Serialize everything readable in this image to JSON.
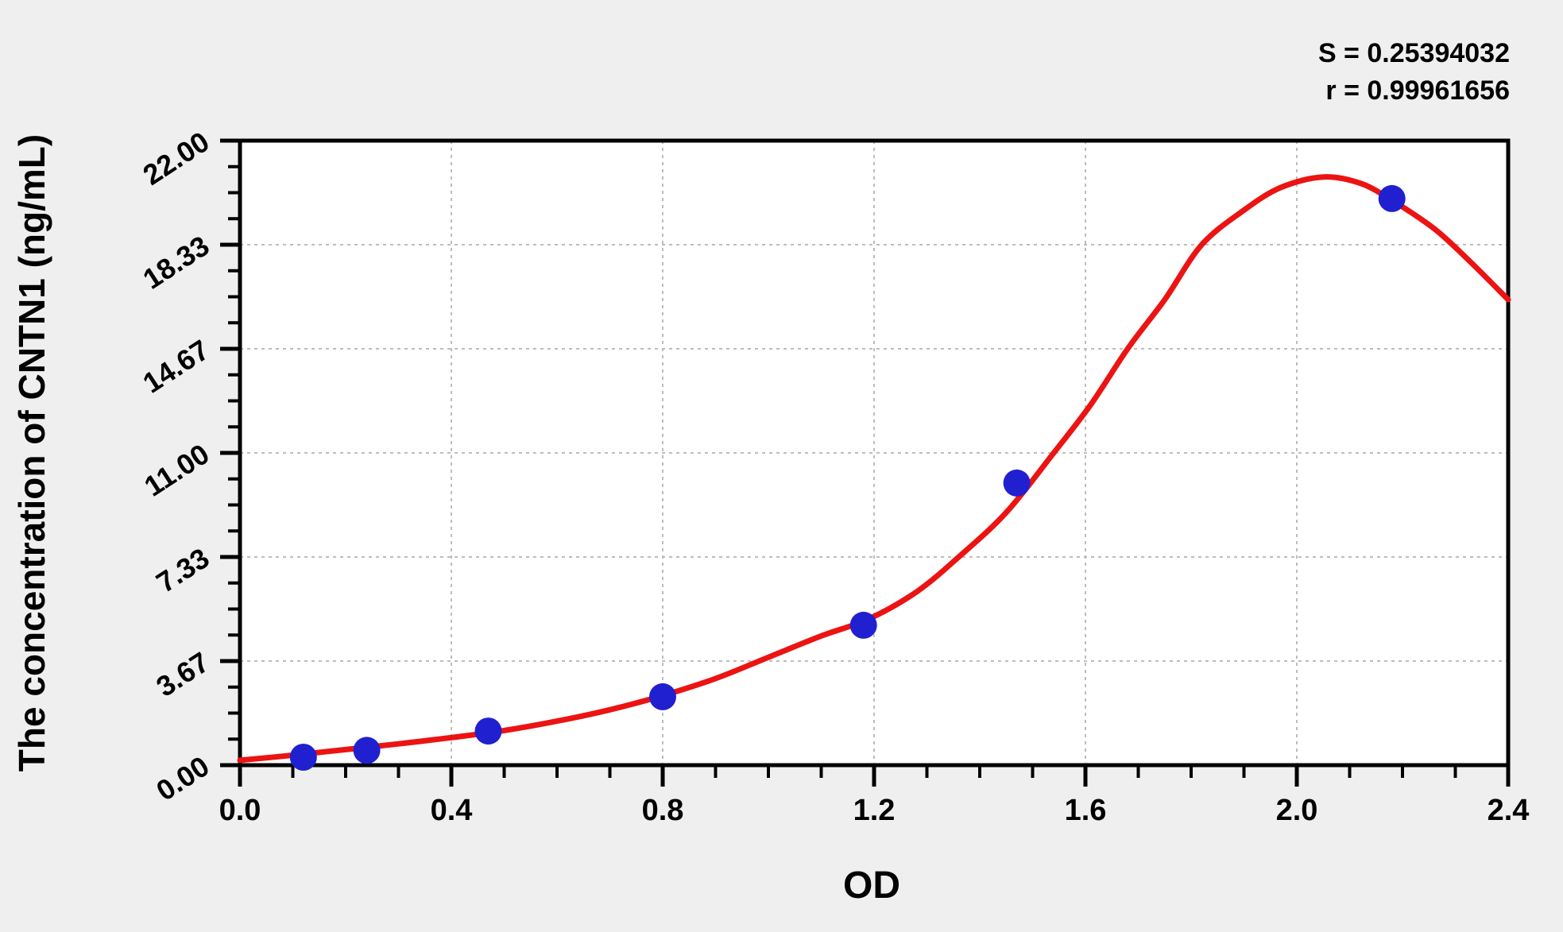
{
  "colors": {
    "page_background": "#efefef",
    "plot_background": "#ffffff",
    "axis": "#000000",
    "grid": "#bdbdbd",
    "curve_red": "#ec1313",
    "point_blue": "#2020d0"
  },
  "stats": {
    "s_text": "S = 0.25394032",
    "r_text": "r = 0.99961656"
  },
  "chart_data": {
    "type": "scatter",
    "title": "",
    "xlabel": "OD",
    "ylabel": "The concentration of CNTN1 (ng/mL)",
    "xlim": [
      0.0,
      2.4
    ],
    "ylim": [
      0.0,
      22.0
    ],
    "grid": {
      "show": true,
      "style": "dashed",
      "on": "major-ticks"
    },
    "legend_position": "none",
    "x_ticks": {
      "values": [
        0.0,
        0.4,
        0.8,
        1.2,
        1.6,
        2.0,
        2.4
      ],
      "labels": [
        "0.0",
        "0.4",
        "0.8",
        "1.2",
        "1.6",
        "2.0",
        "2.4"
      ],
      "minor_per_major": 3
    },
    "y_ticks": {
      "values": [
        0.0,
        3.6667,
        7.3333,
        11.0,
        14.6667,
        18.3333,
        22.0
      ],
      "labels": [
        "0.00",
        "3.67",
        "7.33",
        "11.00",
        "14.67",
        "18.33",
        "22.00"
      ],
      "minor_per_major": 3
    },
    "stats": {
      "s_text": "S = 0.25394032",
      "r_text": "r = 0.99961656"
    },
    "series": [
      {
        "name": "standard-points",
        "type": "scatter",
        "marker": "circle",
        "color": "#2020d0",
        "marker_radius": 17,
        "points": [
          [
            0.12,
            0.28
          ],
          [
            0.24,
            0.52
          ],
          [
            0.47,
            1.2
          ],
          [
            0.8,
            2.41
          ],
          [
            1.18,
            4.93
          ],
          [
            1.47,
            9.94
          ],
          [
            2.18,
            19.96
          ]
        ]
      },
      {
        "name": "fitted-curve",
        "type": "line",
        "color": "#ec1313",
        "stroke_width": 7,
        "points": [
          [
            0.0,
            0.17
          ],
          [
            0.1,
            0.35
          ],
          [
            0.2,
            0.55
          ],
          [
            0.3,
            0.75
          ],
          [
            0.4,
            0.97
          ],
          [
            0.5,
            1.22
          ],
          [
            0.6,
            1.55
          ],
          [
            0.7,
            1.95
          ],
          [
            0.8,
            2.45
          ],
          [
            0.9,
            3.05
          ],
          [
            1.0,
            3.8
          ],
          [
            1.1,
            4.55
          ],
          [
            1.19,
            5.15
          ],
          [
            1.28,
            6.1
          ],
          [
            1.36,
            7.33
          ],
          [
            1.45,
            8.9
          ],
          [
            1.54,
            11.0
          ],
          [
            1.61,
            12.7
          ],
          [
            1.68,
            14.67
          ],
          [
            1.75,
            16.4
          ],
          [
            1.82,
            18.33
          ],
          [
            1.9,
            19.55
          ],
          [
            1.97,
            20.35
          ],
          [
            2.05,
            20.72
          ],
          [
            2.12,
            20.5
          ],
          [
            2.18,
            19.9
          ],
          [
            2.26,
            18.9
          ],
          [
            2.33,
            17.7
          ],
          [
            2.4,
            16.4
          ]
        ]
      }
    ]
  }
}
